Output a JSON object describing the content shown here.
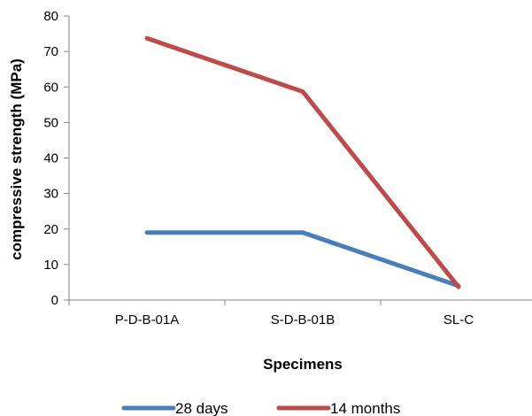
{
  "chart_data": {
    "type": "line",
    "title": "",
    "xlabel": "Specimens",
    "ylabel": "compressive strength (MPa)",
    "categories": [
      "P-D-B-01A",
      "S-D-B-01B",
      "SL-C"
    ],
    "ylim": [
      0,
      80
    ],
    "yticks": [
      "0",
      "10",
      "20",
      "30",
      "40",
      "50",
      "60",
      "70",
      "80"
    ],
    "grid": false,
    "legend_position": "bottom",
    "series": [
      {
        "name": "28 days",
        "values": [
          19,
          19,
          4
        ],
        "color": "#4a7ebb"
      },
      {
        "name": "14 months",
        "values": [
          73.7,
          58.7,
          3.7
        ],
        "color": "#be4b48"
      }
    ]
  }
}
